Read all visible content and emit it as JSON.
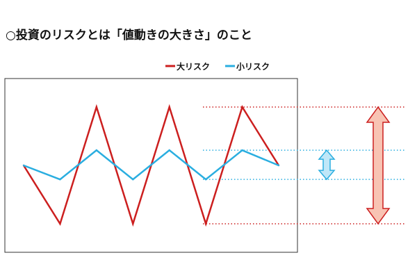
{
  "title": "○投資のリスクとは「値動きの大きさ」のこと",
  "chart_data": {
    "type": "line",
    "title": "",
    "xlabel": "",
    "ylabel": "",
    "x": [
      0,
      1,
      2,
      3,
      4,
      5,
      6,
      7
    ],
    "ylim": [
      0,
      100
    ],
    "grid": false,
    "legend_position": "top-right",
    "series": [
      {
        "name": "大リスク",
        "color": "#cc1f1f",
        "values": [
          50,
          0,
          100,
          0,
          100,
          0,
          100,
          50
        ]
      },
      {
        "name": "小リスク",
        "color": "#2aaee0",
        "values": [
          50,
          38,
          63,
          38,
          63,
          38,
          63,
          50
        ]
      }
    ],
    "range_guides": [
      {
        "series": "大リスク",
        "high": 100,
        "low": 0,
        "arrow_fill": "#f8c3b3",
        "arrow_stroke": "#cc1f1f",
        "line_style": "dotted"
      },
      {
        "series": "小リスク",
        "high": 63,
        "low": 38,
        "arrow_fill": "#bfe7f8",
        "arrow_stroke": "#2aaee0",
        "line_style": "dotted"
      }
    ]
  }
}
